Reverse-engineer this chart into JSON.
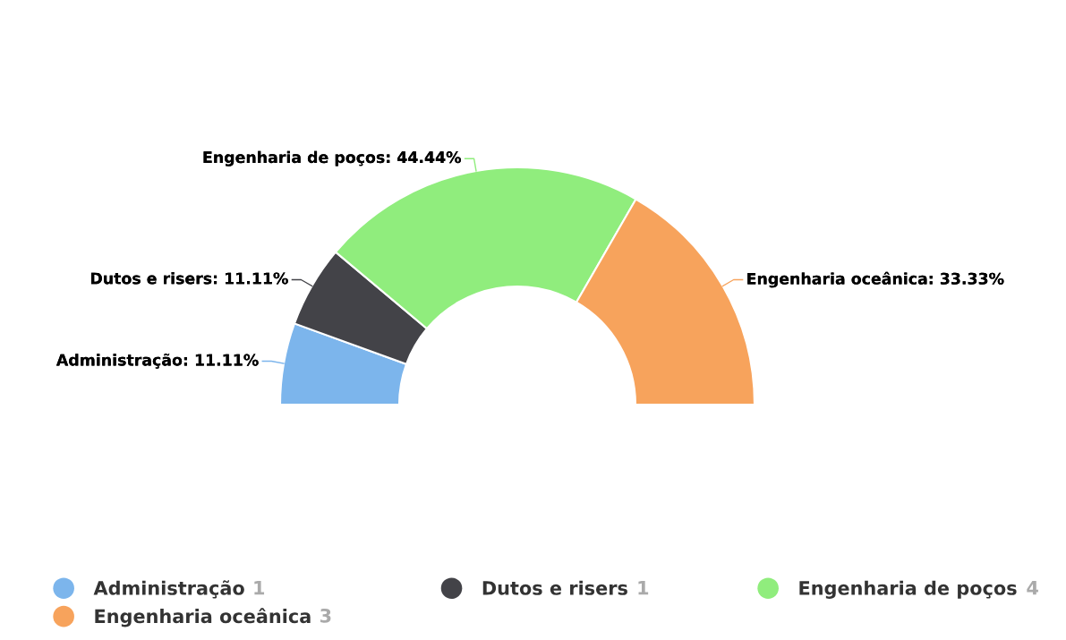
{
  "chart_data": {
    "type": "donut",
    "categories": [
      "Administração",
      "Dutos e risers",
      "Engenharia de poços",
      "Engenharia oceânica"
    ],
    "values": [
      11.11,
      11.11,
      44.44,
      33.33
    ],
    "annotations": [
      "1",
      "1",
      "4",
      "3"
    ],
    "colors": [
      "#7cb5ec",
      "#434348",
      "#90ed7d",
      "#f7a35c"
    ],
    "value_labels": [
      "Administração: 11.11%",
      "Dutos e risers: 11.11%",
      "Engenharia de poços: 44.44%",
      "Engenharia oceânica: 33.33%"
    ],
    "legend": "bottom"
  }
}
